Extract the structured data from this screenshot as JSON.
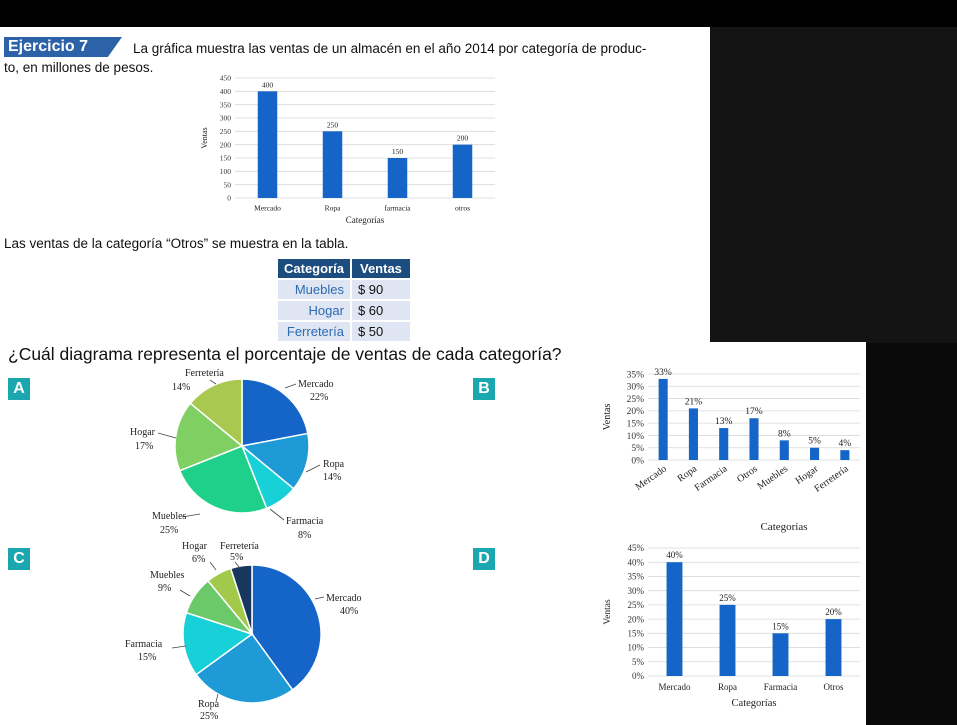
{
  "exercise": {
    "label": "Ejercicio 7",
    "prompt_line1": "La gráfica muestra las ventas de un almacén en el año 2014 por categoría de produc-",
    "prompt_line2": "to, en millones de pesos.",
    "table_intro": "Las ventas de la categoría “Otros” se muestra en la tabla.",
    "question": "¿Cuál diagrama representa el porcentaje de ventas de cada categoría?"
  },
  "table": {
    "headers": [
      "Categoría",
      "Ventas"
    ],
    "rows": [
      {
        "categoria": "Muebles",
        "ventas": "$ 90"
      },
      {
        "categoria": "Hogar",
        "ventas": "$ 60"
      },
      {
        "categoria": "Ferretería",
        "ventas": "$ 50"
      }
    ]
  },
  "options": [
    "A",
    "B",
    "C",
    "D"
  ],
  "chart_data": [
    {
      "id": "main-bar",
      "type": "bar",
      "categories": [
        "Mercado",
        "Ropa",
        "farmacia",
        "otros"
      ],
      "values": [
        400,
        250,
        150,
        200
      ],
      "data_labels": [
        "400",
        "250",
        "150",
        "200"
      ],
      "xlabel": "Categorías",
      "ylabel": "Ventas",
      "ylim": [
        0,
        450
      ],
      "yticks": [
        "0",
        "50",
        "100",
        "150",
        "200",
        "250",
        "300",
        "350",
        "400",
        "450"
      ],
      "color": "#1565c8",
      "grid": true
    },
    {
      "id": "option-a",
      "type": "pie",
      "labels": [
        "Mercado",
        "Ropa",
        "Farmacia",
        "Muebles",
        "Hogar",
        "Ferretería"
      ],
      "values": [
        22,
        14,
        8,
        25,
        17,
        14
      ],
      "percent_labels": [
        "22%",
        "14%",
        "8%",
        "25%",
        "17%",
        "14%"
      ],
      "colors": [
        "#1565c8",
        "#1e9ad6",
        "#18d0d8",
        "#1fd08a",
        "#7fcf63",
        "#a8c850"
      ]
    },
    {
      "id": "option-b",
      "type": "bar",
      "categories": [
        "Mercado",
        "Ropa",
        "Farmacia",
        "Otros",
        "Muebles",
        "Hogar",
        "Ferretería"
      ],
      "values": [
        33,
        21,
        13,
        17,
        8,
        5,
        4
      ],
      "data_labels": [
        "33%",
        "21%",
        "13%",
        "17%",
        "8%",
        "5%",
        "4%"
      ],
      "xlabel": "Categorías",
      "ylabel": "Ventas",
      "ylim": [
        0,
        35
      ],
      "yticks": [
        "0%",
        "5%",
        "10%",
        "15%",
        "20%",
        "25%",
        "30%",
        "35%"
      ],
      "color": "#1565c8",
      "grid": true
    },
    {
      "id": "option-c",
      "type": "pie",
      "labels": [
        "Mercado",
        "Ropa",
        "Farmacia",
        "Muebles",
        "Hogar",
        "Ferretería"
      ],
      "values": [
        40,
        25,
        15,
        9,
        6,
        5
      ],
      "percent_labels": [
        "40%",
        "25%",
        "15%",
        "9%",
        "6%",
        "5%"
      ],
      "colors": [
        "#1565c8",
        "#1e9ad6",
        "#18d0d8",
        "#6cc96a",
        "#a3c94a",
        "#17375e"
      ]
    },
    {
      "id": "option-d",
      "type": "bar",
      "categories": [
        "Mercado",
        "Ropa",
        "Farmacia",
        "Otros"
      ],
      "values": [
        40,
        25,
        15,
        20
      ],
      "data_labels": [
        "40%",
        "25%",
        "15%",
        "20%"
      ],
      "xlabel": "Categorías",
      "ylabel": "Ventas",
      "ylim": [
        0,
        45
      ],
      "yticks": [
        "0%",
        "5%",
        "10%",
        "15%",
        "20%",
        "25%",
        "30%",
        "35%",
        "40%",
        "45%"
      ],
      "color": "#1565c8",
      "grid": true
    }
  ]
}
